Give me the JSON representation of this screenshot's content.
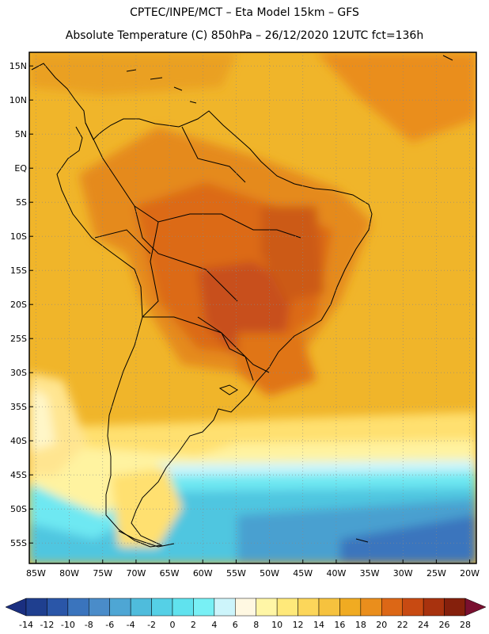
{
  "header": {
    "line1": "CPTEC/INPE/MCT –   Eta Model 15km – GFS",
    "line2": "Absolute Temperature (C) 850hPa – 26/12/2020 12UTC fct=136h"
  },
  "map": {
    "lat_labels": [
      "15N",
      "10N",
      "5N",
      "EQ",
      "5S",
      "10S",
      "15S",
      "20S",
      "25S",
      "30S",
      "35S",
      "40S",
      "45S",
      "50S",
      "55S"
    ],
    "lon_labels": [
      "85W",
      "80W",
      "75W",
      "70W",
      "65W",
      "60W",
      "55W",
      "50W",
      "45W",
      "40W",
      "35W",
      "30W",
      "25W",
      "20W"
    ],
    "lon_range": [
      -86,
      -19
    ],
    "lat_range": [
      -58,
      17
    ],
    "grid_lines": true
  },
  "colorbar": {
    "labels": [
      "-14",
      "-12",
      "-10",
      "-8",
      "-6",
      "-4",
      "-2",
      "0",
      "2",
      "4",
      "6",
      "8",
      "10",
      "12",
      "14",
      "16",
      "18",
      "20",
      "22",
      "24",
      "26",
      "28"
    ],
    "colors": [
      "#1f3f8f",
      "#2a56a8",
      "#3a74bd",
      "#4a8cc9",
      "#4ea6d4",
      "#4fbcdc",
      "#55d0e6",
      "#60e2ee",
      "#78f0f5",
      "#cdf5fb",
      "#fff8e2",
      "#fff6a6",
      "#ffe97a",
      "#fcd65a",
      "#f6c23e",
      "#f0ab22",
      "#ea8e1c",
      "#dc6716",
      "#c84a12",
      "#a8320e",
      "#85200c"
    ],
    "under_color": "#1a2f80",
    "over_color": "#7a1030"
  }
}
